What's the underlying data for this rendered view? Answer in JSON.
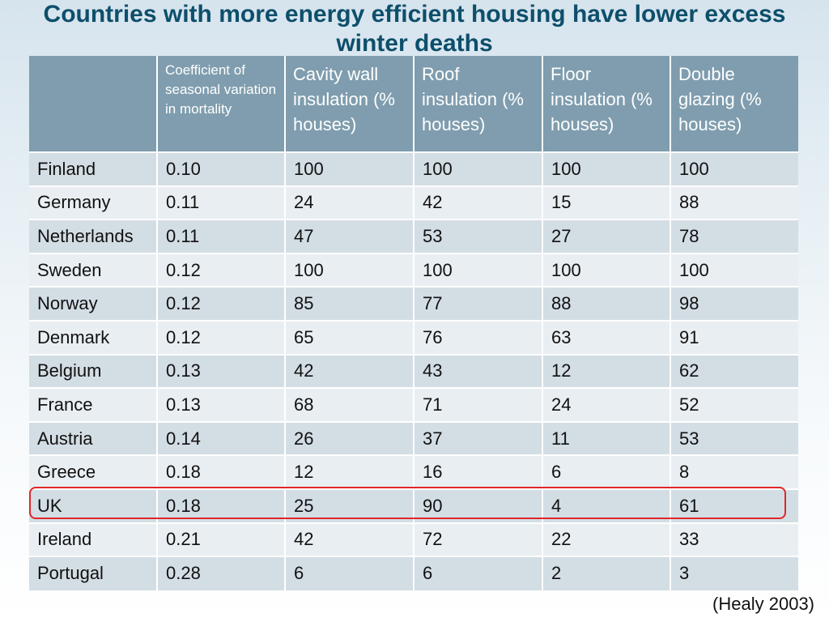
{
  "title": "Countries with more energy efficient housing have lower excess winter deaths",
  "table": {
    "headers": [
      "",
      "Coefficient of seasonal variation in mortality",
      "Cavity wall insulation (% houses)",
      "Roof insulation (% houses)",
      "Floor insulation (% houses)",
      "Double glazing (% houses)"
    ],
    "rows": [
      [
        "Finland",
        "0.10",
        "100",
        "100",
        "100",
        "100"
      ],
      [
        "Germany",
        "0.11",
        "24",
        "42",
        "15",
        "88"
      ],
      [
        "Netherlands",
        "0.11",
        "47",
        "53",
        "27",
        "78"
      ],
      [
        "Sweden",
        "0.12",
        "100",
        "100",
        "100",
        "100"
      ],
      [
        "Norway",
        "0.12",
        "85",
        "77",
        "88",
        "98"
      ],
      [
        "Denmark",
        "0.12",
        "65",
        "76",
        "63",
        "91"
      ],
      [
        "Belgium",
        "0.13",
        "42",
        "43",
        "12",
        "62"
      ],
      [
        "France",
        "0.13",
        "68",
        "71",
        "24",
        "52"
      ],
      [
        "Austria",
        "0.14",
        "26",
        "37",
        "11",
        "53"
      ],
      [
        "Greece",
        "0.18",
        "12",
        "16",
        "6",
        "8"
      ],
      [
        "UK",
        "0.18",
        "25",
        "90",
        "4",
        "61"
      ],
      [
        "Ireland",
        "0.21",
        "42",
        "72",
        "22",
        "33"
      ],
      [
        "Portugal",
        "0.28",
        "6",
        "6",
        "2",
        "3"
      ]
    ],
    "highlighted_row": "UK"
  },
  "citation": "(Healy 2003)",
  "colors": {
    "title": "#0d4f6b",
    "header_bg": "#7f9dae",
    "row_alt": "#d3dde4",
    "row_plain": "#e9eef2",
    "highlight": "#e0272a"
  }
}
